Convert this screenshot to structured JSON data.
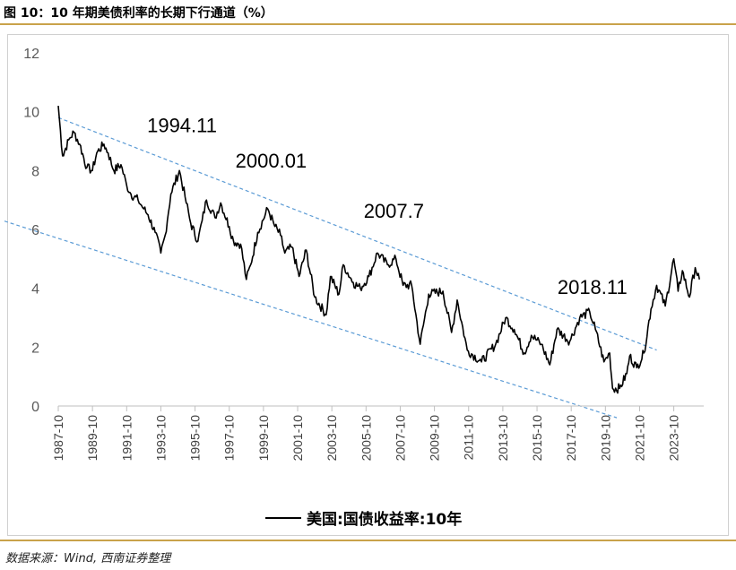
{
  "figure": {
    "title": "图 10：10 年期美债利率的长期下行通道（%）",
    "source": "数据来源：Wind, 西南证券整理"
  },
  "colors": {
    "series": "#000000",
    "channel": "#5b9bd5",
    "axis_text": "#595959",
    "rule": "#c9a24a"
  },
  "chart_data": {
    "type": "line",
    "title": "",
    "xlabel": "",
    "ylabel": "",
    "ylim": [
      0,
      12
    ],
    "yticks": [
      0,
      2,
      4,
      6,
      8,
      10,
      12
    ],
    "xlim": [
      1987.75,
      2025.5
    ],
    "xtick_labels": [
      "1987-10",
      "1989-10",
      "1991-10",
      "1993-10",
      "1995-10",
      "1997-10",
      "1999-10",
      "2001-10",
      "2003-10",
      "2005-10",
      "2007-10",
      "2009-10",
      "2011-10",
      "2013-10",
      "2015-10",
      "2017-10",
      "2019-10",
      "2021-10",
      "2023-10"
    ],
    "grid": false,
    "legend": {
      "position": "bottom",
      "entries": [
        "美国:国债收益率:10年"
      ]
    },
    "series": [
      {
        "name": "美国:国债收益率:10年",
        "x": [
          "1987-10",
          "1988-01",
          "1988-06",
          "1988-09",
          "1989-01",
          "1989-06",
          "1989-10",
          "1990-01",
          "1990-06",
          "1990-09",
          "1991-01",
          "1991-06",
          "1991-10",
          "1992-01",
          "1992-06",
          "1992-10",
          "1993-01",
          "1993-06",
          "1993-10",
          "1994-01",
          "1994-05",
          "1994-11",
          "1995-03",
          "1995-07",
          "1995-12",
          "1996-03",
          "1996-06",
          "1996-12",
          "1997-04",
          "1997-10",
          "1998-01",
          "1998-06",
          "1998-10",
          "1999-01",
          "1999-06",
          "2000-01",
          "2000-06",
          "2000-10",
          "2001-01",
          "2001-06",
          "2001-11",
          "2002-04",
          "2002-10",
          "2003-06",
          "2003-09",
          "2004-03",
          "2004-06",
          "2005-01",
          "2005-06",
          "2005-12",
          "2006-06",
          "2007-01",
          "2007-07",
          "2007-12",
          "2008-06",
          "2008-12",
          "2009-06",
          "2010-04",
          "2010-10",
          "2011-02",
          "2011-09",
          "2012-07",
          "2013-05",
          "2013-12",
          "2014-06",
          "2015-01",
          "2015-06",
          "2016-01",
          "2016-07",
          "2016-12",
          "2017-09",
          "2018-04",
          "2018-11",
          "2019-03",
          "2019-09",
          "2020-01",
          "2020-03",
          "2020-08",
          "2021-01",
          "2021-03",
          "2021-08",
          "2022-01",
          "2022-06",
          "2022-10",
          "2023-04",
          "2023-10",
          "2024-01",
          "2024-04",
          "2024-09",
          "2025-01",
          "2025-04"
        ],
        "y": [
          10.2,
          8.5,
          9.1,
          9.3,
          8.9,
          8.1,
          8.0,
          8.6,
          8.9,
          8.6,
          8.0,
          8.2,
          7.5,
          7.2,
          7.0,
          6.7,
          6.5,
          5.9,
          5.2,
          5.8,
          7.2,
          8.0,
          7.1,
          6.2,
          5.6,
          6.3,
          7.0,
          6.4,
          6.9,
          6.1,
          5.6,
          5.5,
          4.3,
          4.8,
          5.9,
          6.7,
          6.1,
          5.8,
          5.2,
          5.4,
          4.4,
          5.3,
          3.7,
          3.1,
          4.4,
          3.8,
          4.8,
          4.2,
          4.0,
          4.4,
          5.2,
          4.8,
          5.0,
          4.1,
          4.1,
          2.1,
          3.8,
          3.9,
          2.5,
          3.6,
          1.9,
          1.5,
          2.1,
          3.0,
          2.6,
          1.8,
          2.4,
          2.1,
          1.4,
          2.6,
          2.2,
          3.0,
          3.2,
          2.6,
          1.5,
          1.8,
          0.6,
          0.6,
          1.1,
          1.7,
          1.3,
          1.8,
          3.3,
          4.1,
          3.4,
          5.0,
          3.9,
          4.6,
          3.7,
          4.7,
          4.3
        ]
      }
    ],
    "channel_lines": [
      {
        "from": {
          "x": "1987-10",
          "y": 9.8
        },
        "to": {
          "x": "2022-10",
          "y": 1.9
        }
      },
      {
        "from": {
          "x": "1987-10",
          "y": 6.8
        },
        "to": {
          "x": "2020-06",
          "y": -0.4
        }
      }
    ],
    "annotations": [
      {
        "text": "1994.11",
        "x": "1994-11",
        "y": 9.3
      },
      {
        "text": "2000.01",
        "x": "2000-01",
        "y": 8.1
      },
      {
        "text": "2007.7",
        "x": "2007-07",
        "y": 6.4
      },
      {
        "text": "2018.11",
        "x": "2018-11",
        "y": 3.8
      }
    ]
  }
}
